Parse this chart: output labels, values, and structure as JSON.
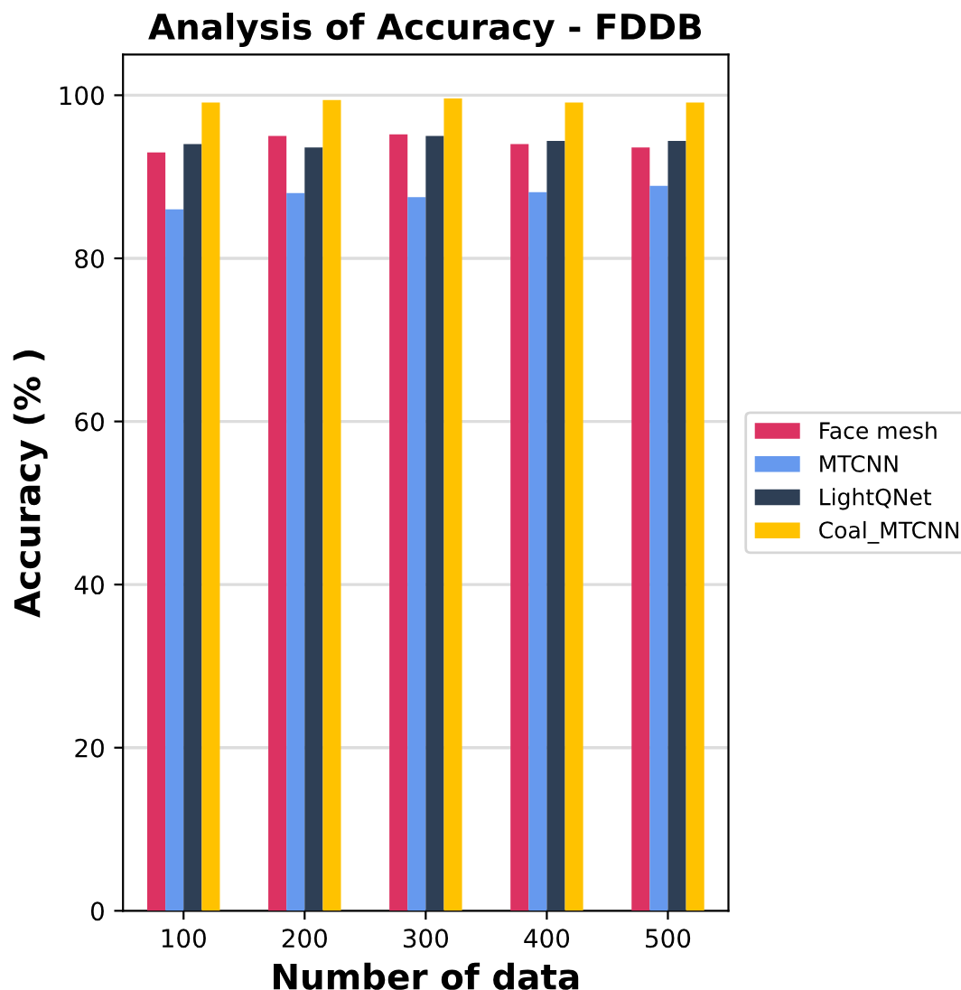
{
  "chart_data": {
    "type": "bar",
    "title": "Analysis of Accuracy - FDDB",
    "xlabel": "Number of data",
    "ylabel": "Accuracy (% )",
    "categories": [
      "100",
      "200",
      "300",
      "400",
      "500"
    ],
    "series": [
      {
        "name": "Face mesh",
        "color": "#dc3262",
        "values": [
          93.0,
          95.0,
          95.2,
          94.0,
          93.6
        ]
      },
      {
        "name": "MTCNN",
        "color": "#6699ee",
        "values": [
          86.0,
          88.0,
          87.5,
          88.1,
          88.9
        ]
      },
      {
        "name": "LightQNet",
        "color": "#2e3f55",
        "values": [
          94.0,
          93.6,
          95.0,
          94.4,
          94.4
        ]
      },
      {
        "name": "Coal_MTCNN",
        "color": "#ffc200",
        "values": [
          99.1,
          99.4,
          99.6,
          99.1,
          99.1
        ]
      }
    ],
    "ylim": [
      0,
      105
    ],
    "yticks": [
      0,
      20,
      40,
      60,
      80,
      100
    ],
    "grid": "y",
    "legend": "right"
  }
}
